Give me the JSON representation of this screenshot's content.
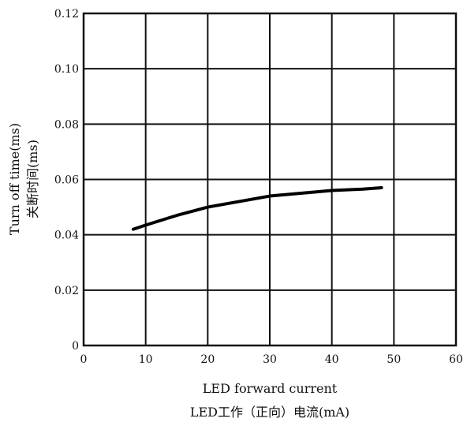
{
  "chart_data": {
    "type": "line",
    "xlabel": "LED forward current",
    "xlabel_cn": "LED工作（正向）电流(mA)",
    "ylabel": "Turn off time(ms)",
    "ylabel_cn": "关断时间(ms)",
    "xlim": [
      0,
      60
    ],
    "ylim": [
      0,
      0.12
    ],
    "xticks": [
      "0",
      "10",
      "20",
      "30",
      "40",
      "50",
      "60"
    ],
    "yticks": [
      "0",
      "0.02",
      "0.04",
      "0.06",
      "0.08",
      "0.10",
      "0.12"
    ],
    "grid": true,
    "series": [
      {
        "x": [
          8,
          10,
          15,
          20,
          25,
          30,
          35,
          40,
          45,
          48
        ],
        "y": [
          0.042,
          0.0435,
          0.047,
          0.05,
          0.052,
          0.054,
          0.055,
          0.056,
          0.0565,
          0.057
        ]
      }
    ]
  }
}
